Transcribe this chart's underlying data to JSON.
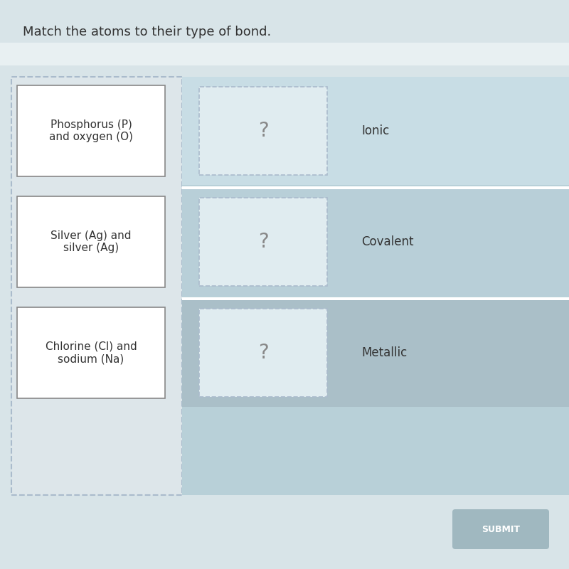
{
  "title": "Match the atoms to their type of bond.",
  "title_fontsize": 13,
  "title_color": "#333333",
  "page_bg": "#d8e4e8",
  "left_panel_bg": "#dde6ea",
  "left_panel_border": "#aabbcc",
  "right_panel_bg": "#b8d0d8",
  "white_stripe_color": "#e8f0f2",
  "atom_boxes": [
    {
      "text": "Phosphorus (P)\nand oxygen (O)"
    },
    {
      "text": "Silver (Ag) and\nsilver (Ag)"
    },
    {
      "text": "Chlorine (Cl) and\nsodium (Na)"
    }
  ],
  "bond_labels": [
    {
      "text": "Ionic"
    },
    {
      "text": "Covalent"
    },
    {
      "text": "Metallic"
    }
  ],
  "row_colors": [
    "#c8dde5",
    "#b8cfd8",
    "#aabfc8"
  ],
  "atom_box_color": "#ffffff",
  "atom_box_border": "#888888",
  "drop_box_border": "#aabbcc",
  "drop_box_color": "#e0ecf0",
  "question_color": "#888888",
  "bond_text_color": "#333333",
  "submit_bg": "#a0b8c0",
  "submit_text": "SUBMIT",
  "submit_text_color": "#ffffff"
}
